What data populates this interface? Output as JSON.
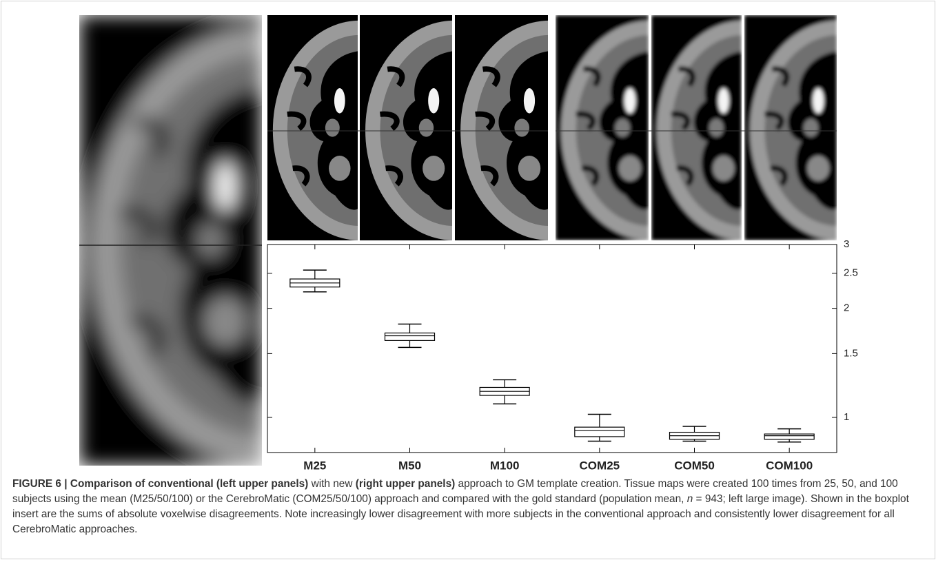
{
  "chart_data": {
    "type": "box",
    "categories": [
      "M25",
      "M50",
      "M100",
      "COM25",
      "COM50",
      "COM100"
    ],
    "boxes": [
      {
        "whisker_low": 2.22,
        "q1": 2.29,
        "median": 2.35,
        "q3": 2.41,
        "whisker_high": 2.55
      },
      {
        "whisker_low": 1.56,
        "q1": 1.63,
        "median": 1.68,
        "q3": 1.71,
        "whisker_high": 1.81
      },
      {
        "whisker_low": 1.09,
        "q1": 1.15,
        "median": 1.18,
        "q3": 1.21,
        "whisker_high": 1.27
      },
      {
        "whisker_low": 0.86,
        "q1": 0.885,
        "median": 0.92,
        "q3": 0.94,
        "whisker_high": 1.02
      },
      {
        "whisker_low": 0.86,
        "q1": 0.87,
        "median": 0.89,
        "q3": 0.91,
        "whisker_high": 0.945
      },
      {
        "whisker_low": 0.855,
        "q1": 0.87,
        "median": 0.89,
        "q3": 0.9,
        "whisker_high": 0.93
      }
    ],
    "color": "#000000",
    "ylim": [
      0.8,
      3
    ],
    "yticks": [
      1,
      1.5,
      2,
      2.5,
      3
    ],
    "log_scale": true,
    "y_axis_side": "right"
  },
  "caption": {
    "parts": [
      {
        "text": "FIGURE 6 | Comparison of conventional (left upper panels)",
        "style": "bold"
      },
      {
        "text": " with new ",
        "style": "normal"
      },
      {
        "text": "(right upper panels)",
        "style": "bold"
      },
      {
        "text": " approach to GM template creation. Tissue maps were created 100 times from 25, 50, and 100 subjects using the mean (M25/50/100) or the CerebroMatic (COM25/50/100) approach and compared with the gold standard (population mean, ",
        "style": "normal"
      },
      {
        "text": "n",
        "style": "italic"
      },
      {
        "text": " = 943; left large image). Shown in the boxplot insert are the sums of absolute voxelwise disagreements. Note increasingly lower disagreement with more subjects in the conventional approach and consistently lower disagreement for all CerebroMatic approaches.",
        "style": "normal"
      }
    ]
  }
}
